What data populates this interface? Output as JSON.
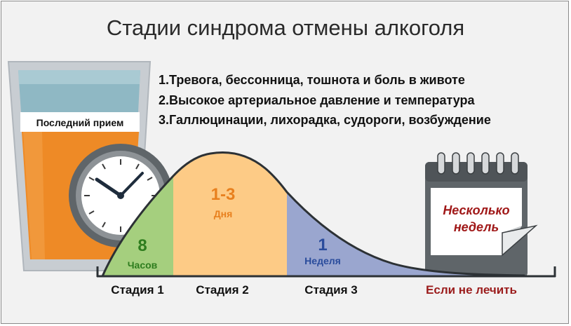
{
  "title": "Стадии синдрома отмены алкоголя",
  "stages_list": [
    "1.Тревога, бессонница, тошнота и боль в животе",
    "2.Высокое артериальное давление и температура",
    "3.Галлюцинации, лихорадка, судороги, возбуждение"
  ],
  "glass_label": "Последний прием",
  "stage1": {
    "value": "8",
    "unit": "Часов",
    "label": "Стадия 1",
    "color": "#a5cf7e",
    "text_color": "#2e7d1e"
  },
  "stage2": {
    "value": "1-3",
    "unit": "Дня",
    "label": "Стадия 2",
    "color": "#fdcb86",
    "text_color": "#e8801e"
  },
  "stage3": {
    "value": "1",
    "unit": "Неделя",
    "label": "Стадия 3",
    "color": "#9aa6cf",
    "text_color": "#2a4c9c"
  },
  "untreated": {
    "text_line1": "Несколько",
    "text_line2": "недель",
    "label": "Если не лечить",
    "color": "#9b1c1c"
  },
  "icons": {
    "glass": "glass-icon",
    "clock": "clock-icon",
    "calendar": "calendar-icon"
  }
}
